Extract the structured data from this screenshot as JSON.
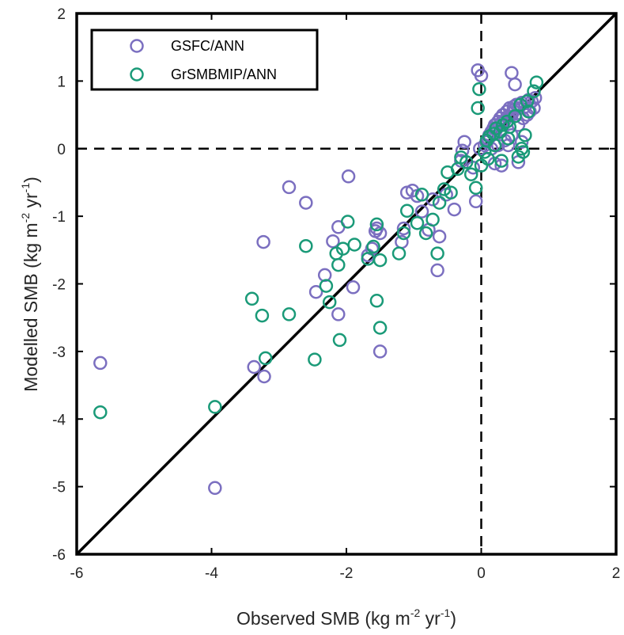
{
  "chart_data": {
    "type": "scatter",
    "xlabel": "Observed SMB (kg m-2 yr-1)",
    "xlabel_parts": {
      "main": "Observed SMB (kg m",
      "exp1": "-2",
      "mid": " yr",
      "exp2": "-1",
      "end": ")"
    },
    "ylabel": "Modelled SMB (kg m-2 yr-1)",
    "ylabel_parts": {
      "main": "Modelled SMB (kg m",
      "exp1": "-2",
      "mid": " yr",
      "exp2": "-1",
      "end": ")"
    },
    "xlim": [
      -6,
      2
    ],
    "ylim": [
      -6,
      2
    ],
    "xticks": [
      -6,
      -4,
      -2,
      0,
      2
    ],
    "yticks": [
      -6,
      -5,
      -4,
      -3,
      -2,
      -1,
      0,
      1,
      2
    ],
    "grid": false,
    "legend_position": "top-left",
    "reference_line": "1:1",
    "zero_lines": "dashed",
    "series": [
      {
        "name": "GSFC/ANN",
        "color": "#7b6fc0",
        "points": [
          [
            -5.65,
            -3.17
          ],
          [
            -3.95,
            -5.02
          ],
          [
            -3.37,
            -3.23
          ],
          [
            -3.22,
            -3.37
          ],
          [
            -3.23,
            -1.38
          ],
          [
            -2.85,
            -0.57
          ],
          [
            -2.6,
            -0.8
          ],
          [
            -2.2,
            -1.37
          ],
          [
            -1.97,
            -0.41
          ],
          [
            -2.12,
            -1.16
          ],
          [
            -2.45,
            -2.12
          ],
          [
            -2.32,
            -1.87
          ],
          [
            -2.12,
            -2.45
          ],
          [
            -1.9,
            -2.05
          ],
          [
            -1.68,
            -1.58
          ],
          [
            -1.62,
            -1.48
          ],
          [
            -1.57,
            -1.22
          ],
          [
            -1.55,
            -1.18
          ],
          [
            -1.5,
            -1.25
          ],
          [
            -1.5,
            -3.0
          ],
          [
            -1.18,
            -1.38
          ],
          [
            -1.1,
            -0.65
          ],
          [
            -1.15,
            -1.18
          ],
          [
            -1.02,
            -0.62
          ],
          [
            -0.95,
            -0.7
          ],
          [
            -0.88,
            -0.93
          ],
          [
            -0.78,
            -1.2
          ],
          [
            -0.72,
            -0.75
          ],
          [
            -0.62,
            -1.3
          ],
          [
            -0.65,
            -1.8
          ],
          [
            -0.52,
            -0.68
          ],
          [
            -0.4,
            -0.9
          ],
          [
            -0.3,
            -0.18
          ],
          [
            -0.28,
            -0.03
          ],
          [
            -0.25,
            0.1
          ],
          [
            -0.12,
            -0.28
          ],
          [
            -0.08,
            -0.78
          ],
          [
            -0.05,
            1.16
          ],
          [
            0.0,
            1.08
          ],
          [
            -0.02,
            0.0
          ],
          [
            0.05,
            0.05
          ],
          [
            0.08,
            0.1
          ],
          [
            0.1,
            0.15
          ],
          [
            0.12,
            0.2
          ],
          [
            0.15,
            0.25
          ],
          [
            0.18,
            0.3
          ],
          [
            0.2,
            0.35
          ],
          [
            0.22,
            0.28
          ],
          [
            0.25,
            0.4
          ],
          [
            0.28,
            0.45
          ],
          [
            0.3,
            0.38
          ],
          [
            0.32,
            0.5
          ],
          [
            0.35,
            0.42
          ],
          [
            0.38,
            0.55
          ],
          [
            0.4,
            0.48
          ],
          [
            0.42,
            0.6
          ],
          [
            0.45,
            0.52
          ],
          [
            0.48,
            0.62
          ],
          [
            0.5,
            0.58
          ],
          [
            0.52,
            0.65
          ],
          [
            0.55,
            0.6
          ],
          [
            0.6,
            0.68
          ],
          [
            0.65,
            0.62
          ],
          [
            0.7,
            0.72
          ],
          [
            0.75,
            0.7
          ],
          [
            0.8,
            0.75
          ],
          [
            0.45,
            1.12
          ],
          [
            0.5,
            0.95
          ],
          [
            0.2,
            -0.22
          ],
          [
            0.3,
            -0.25
          ],
          [
            0.55,
            -0.2
          ],
          [
            0.6,
            0.1
          ],
          [
            0.35,
            0.12
          ],
          [
            0.4,
            0.05
          ],
          [
            0.15,
            0.0
          ],
          [
            0.25,
            0.05
          ],
          [
            0.45,
            0.2
          ],
          [
            0.55,
            0.35
          ],
          [
            0.62,
            0.45
          ],
          [
            0.68,
            0.5
          ],
          [
            0.72,
            0.55
          ],
          [
            0.78,
            0.6
          ]
        ]
      },
      {
        "name": "GrSMBMIP/ANN",
        "color": "#1a9a78",
        "points": [
          [
            -5.65,
            -3.9
          ],
          [
            -3.95,
            -3.82
          ],
          [
            -3.4,
            -2.22
          ],
          [
            -3.25,
            -2.47
          ],
          [
            -3.2,
            -3.1
          ],
          [
            -2.85,
            -2.45
          ],
          [
            -2.6,
            -1.44
          ],
          [
            -2.47,
            -3.12
          ],
          [
            -2.3,
            -2.03
          ],
          [
            -2.25,
            -2.27
          ],
          [
            -2.15,
            -1.55
          ],
          [
            -2.12,
            -1.72
          ],
          [
            -2.1,
            -2.83
          ],
          [
            -2.05,
            -1.48
          ],
          [
            -1.98,
            -1.08
          ],
          [
            -1.88,
            -1.42
          ],
          [
            -1.68,
            -1.63
          ],
          [
            -1.6,
            -1.45
          ],
          [
            -1.55,
            -2.25
          ],
          [
            -1.55,
            -1.12
          ],
          [
            -1.5,
            -1.65
          ],
          [
            -1.5,
            -2.65
          ],
          [
            -1.22,
            -1.55
          ],
          [
            -1.15,
            -1.25
          ],
          [
            -1.1,
            -0.92
          ],
          [
            -0.95,
            -1.1
          ],
          [
            -0.88,
            -0.68
          ],
          [
            -0.82,
            -1.25
          ],
          [
            -0.72,
            -1.05
          ],
          [
            -0.65,
            -1.55
          ],
          [
            -0.62,
            -0.8
          ],
          [
            -0.55,
            -0.6
          ],
          [
            -0.5,
            -0.35
          ],
          [
            -0.45,
            -0.65
          ],
          [
            -0.35,
            -0.3
          ],
          [
            -0.3,
            -0.13
          ],
          [
            -0.22,
            -0.2
          ],
          [
            -0.15,
            -0.38
          ],
          [
            -0.08,
            -0.58
          ],
          [
            -0.05,
            0.6
          ],
          [
            -0.03,
            0.88
          ],
          [
            0.0,
            -0.25
          ],
          [
            0.05,
            -0.05
          ],
          [
            0.08,
            0.12
          ],
          [
            0.12,
            0.18
          ],
          [
            0.18,
            0.22
          ],
          [
            0.22,
            0.3
          ],
          [
            0.28,
            0.25
          ],
          [
            0.32,
            0.35
          ],
          [
            0.38,
            0.4
          ],
          [
            0.42,
            0.32
          ],
          [
            0.5,
            0.48
          ],
          [
            0.55,
            -0.12
          ],
          [
            0.6,
            0.0
          ],
          [
            0.62,
            -0.05
          ],
          [
            0.65,
            0.2
          ],
          [
            0.7,
            0.55
          ],
          [
            0.78,
            0.85
          ],
          [
            0.82,
            0.98
          ],
          [
            0.4,
            0.15
          ],
          [
            0.3,
            -0.18
          ],
          [
            0.2,
            0.05
          ],
          [
            0.1,
            -0.15
          ],
          [
            0.58,
            0.65
          ],
          [
            0.68,
            0.7
          ]
        ]
      }
    ]
  }
}
